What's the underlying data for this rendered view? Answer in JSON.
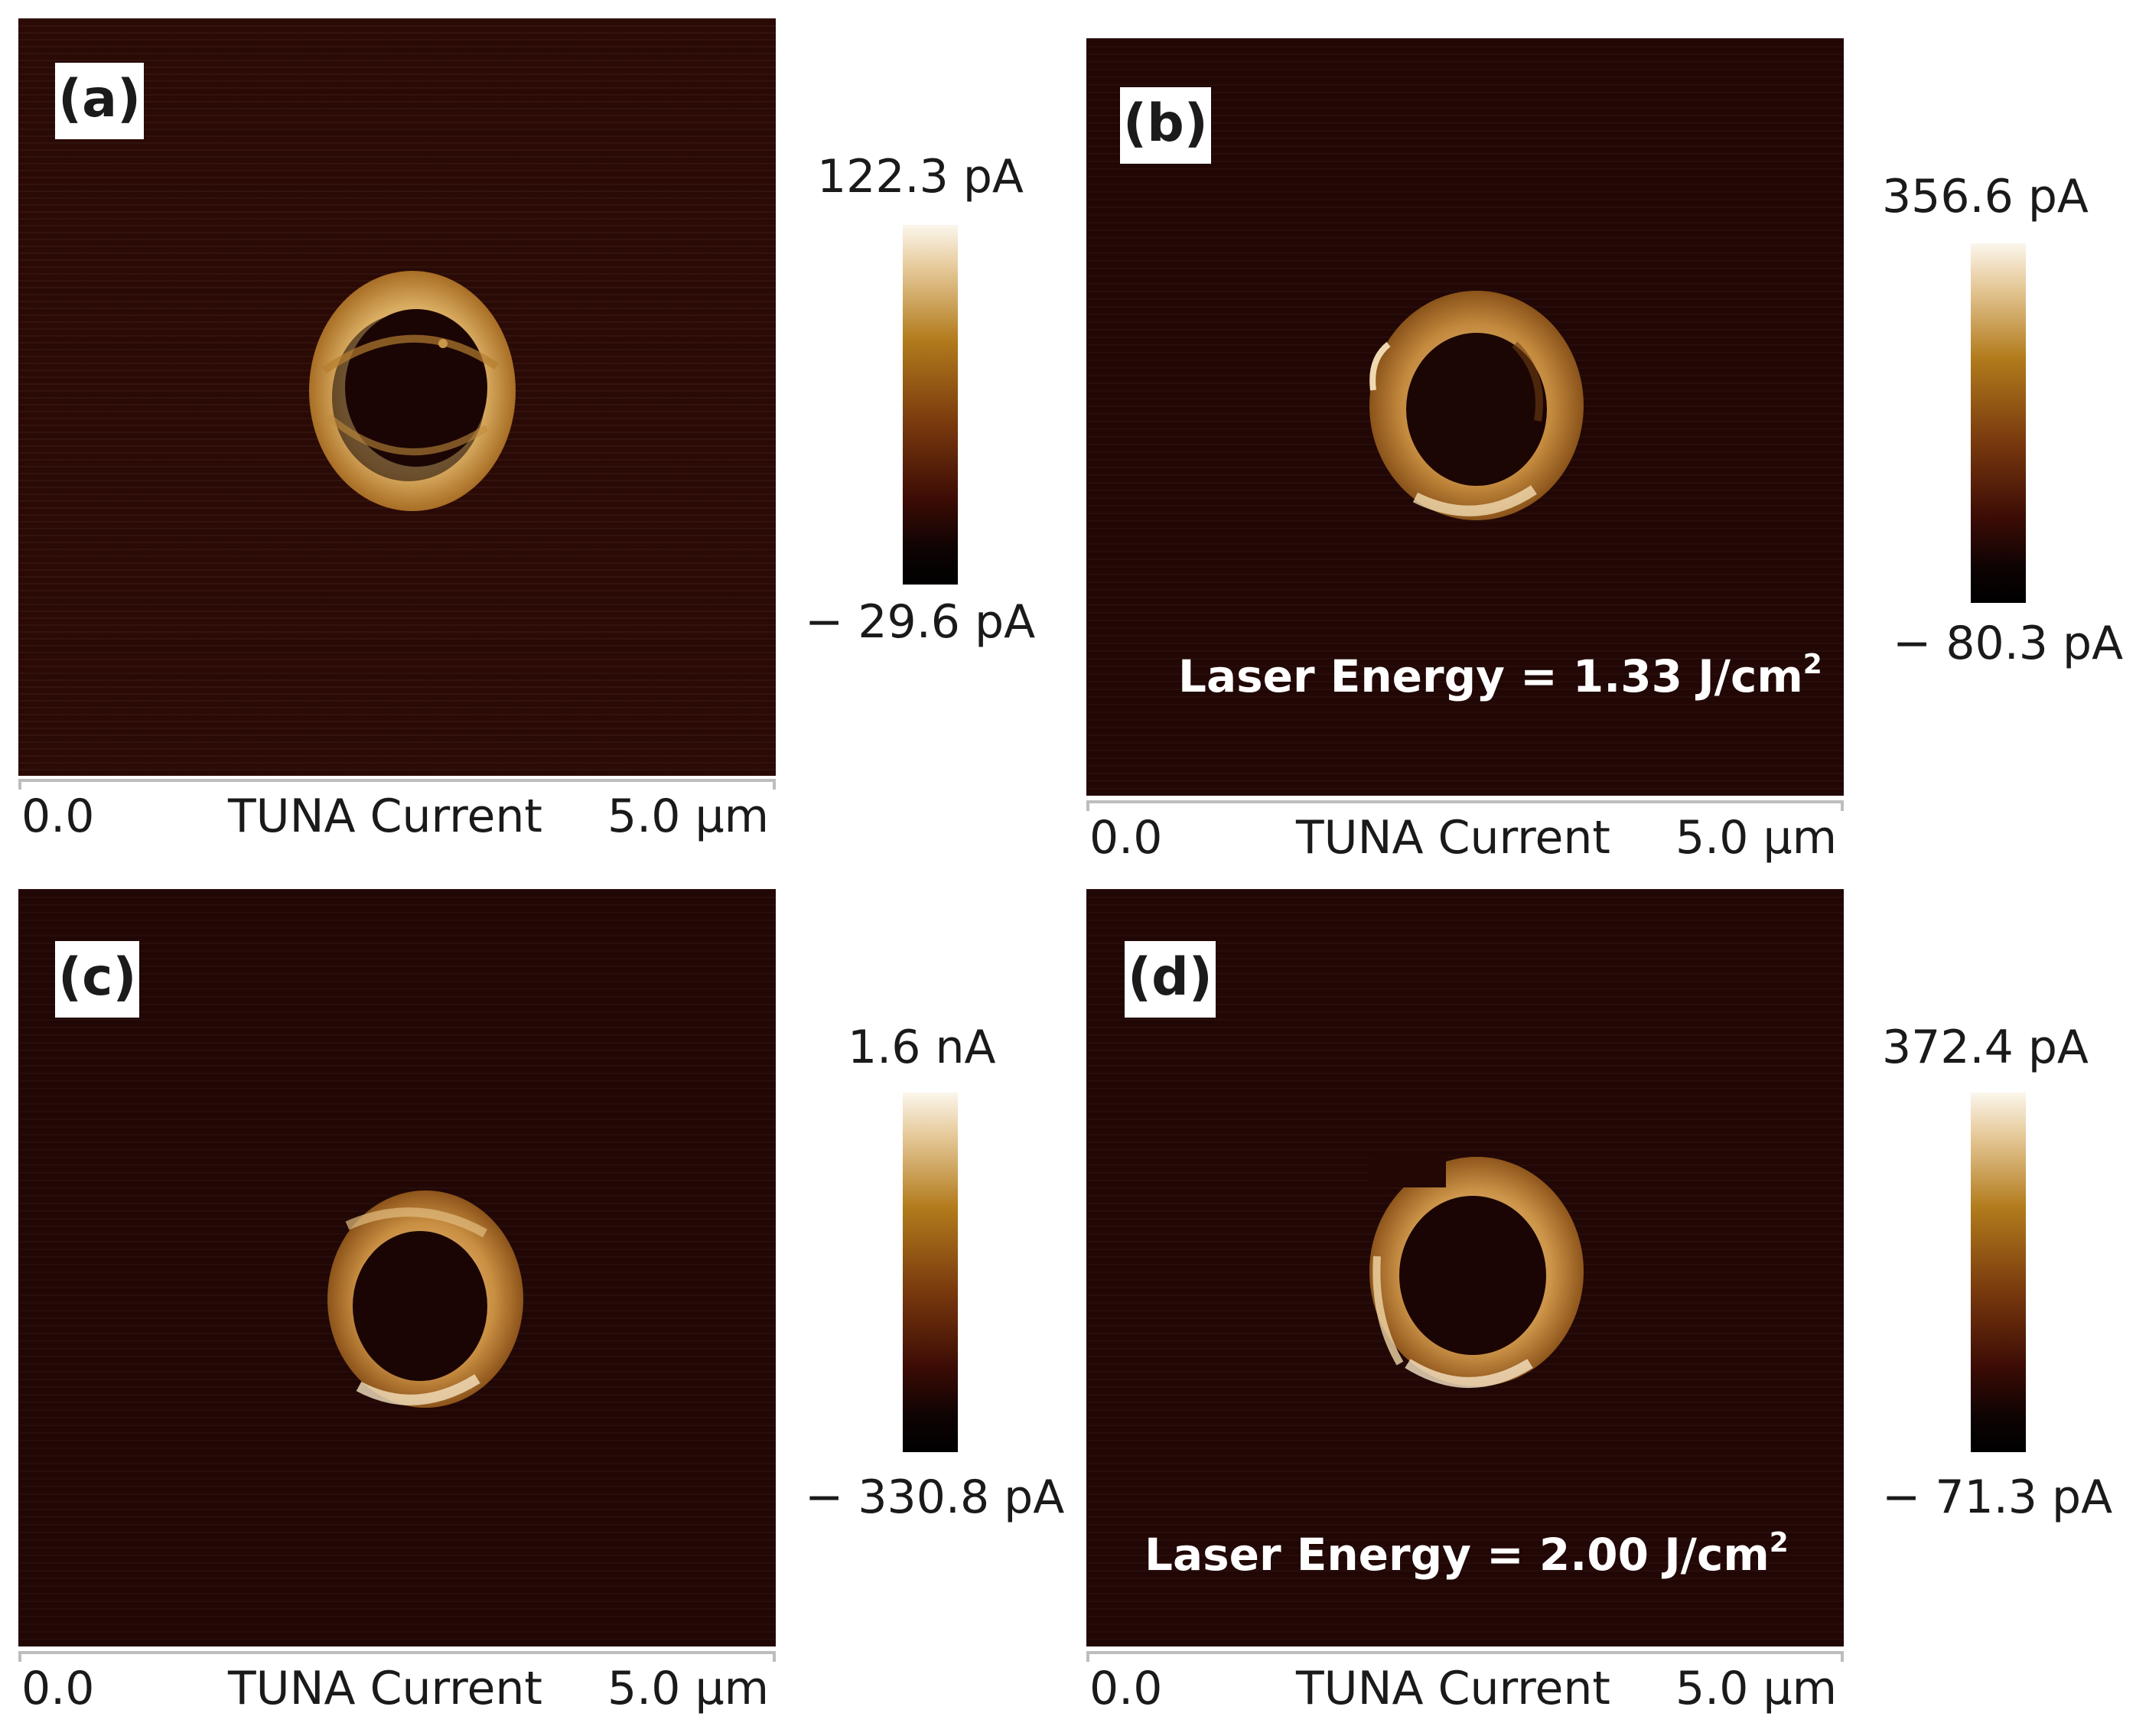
{
  "figure": {
    "panels": [
      {
        "label": "(a)",
        "scale_max": "122.3 pA",
        "scale_min": "− 29.6 pA",
        "axis_start": "0.0",
        "axis_title": "TUNA Current",
        "axis_end": "5.0 µm",
        "energy_text": ""
      },
      {
        "label": "(b)",
        "scale_max": "356.6 pA",
        "scale_min": "− 80.3 pA",
        "axis_start": "0.0",
        "axis_title": "TUNA Current",
        "axis_end": "5.0 µm",
        "energy_text": "Laser Energy = 1.33 J/cm",
        "energy_sup": "2"
      },
      {
        "label": "(c)",
        "scale_max": "1.6 nA",
        "scale_min": "− 330.8 pA",
        "axis_start": "0.0",
        "axis_title": "TUNA Current",
        "axis_end": "5.0 µm",
        "energy_text": ""
      },
      {
        "label": "(d)",
        "scale_max": "372.4 pA",
        "scale_min": "− 71.3 pA",
        "axis_start": "0.0",
        "axis_title": "TUNA Current",
        "axis_end": "5.0 µm",
        "energy_text": "Laser Energy = 2.00 J/cm",
        "energy_sup": "2"
      }
    ],
    "colors": {
      "background_a": "#2b0a05",
      "background_dark": "#220705",
      "ring_light": "#f3dcae",
      "ring_mid": "#c8913d",
      "ring_dark": "#7a4512"
    }
  }
}
